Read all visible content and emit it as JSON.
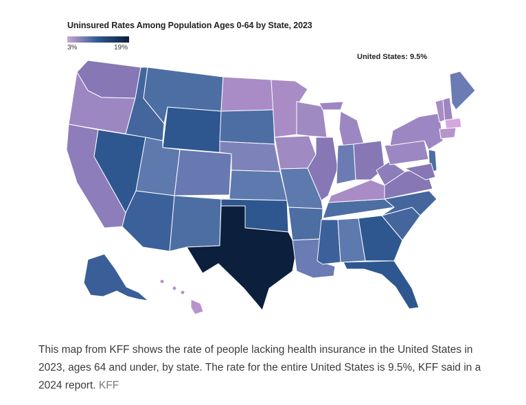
{
  "map": {
    "title": "Uninsured Rates Among Population Ages 0-64 by State, 2023",
    "legend": {
      "min_label": "3%",
      "max_label": "19%",
      "min_color": "#c9a8d6",
      "mid_color": "#2e5790",
      "max_color": "#0c1f3d"
    },
    "national_label": "United States: 9.5%",
    "border_color": "#ffffff"
  },
  "caption": {
    "text": "This map from KFF shows the rate of people lacking health insurance in the United States in 2023, ages 64 and under, by state. The rate for the entire United States is 9.5%, KFF said in a 2024 report.",
    "source": "KFF"
  }
}
